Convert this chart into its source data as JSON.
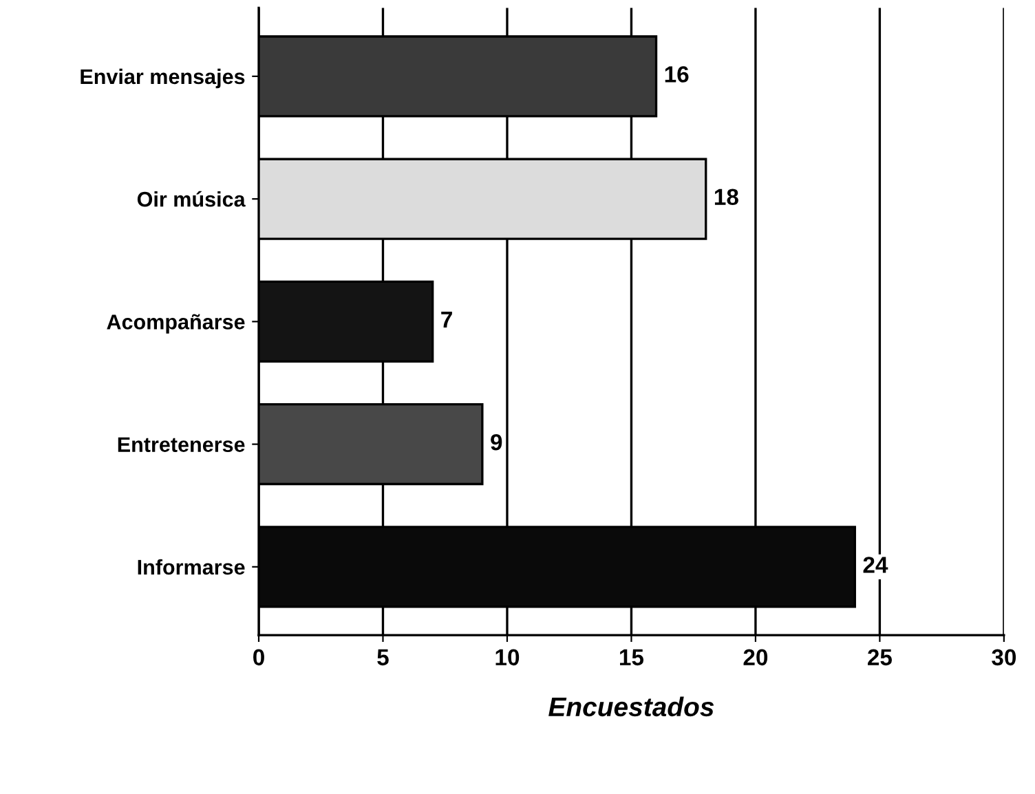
{
  "chart_data": {
    "type": "bar",
    "orientation": "horizontal",
    "xlabel": "Encuestados",
    "categories": [
      "Enviar mensajes",
      "Oir música",
      "Acompañarse",
      "Entretenerse",
      "Informarse"
    ],
    "values": [
      16,
      18,
      7,
      9,
      24
    ],
    "colors": [
      "#3a3a3a",
      "#dcdcdc",
      "#141414",
      "#484848",
      "#0a0a0a"
    ],
    "xlim": [
      0,
      30
    ],
    "xticks": [
      0,
      5,
      10,
      15,
      20,
      25,
      30
    ],
    "grid": "x",
    "data_labels": true
  }
}
